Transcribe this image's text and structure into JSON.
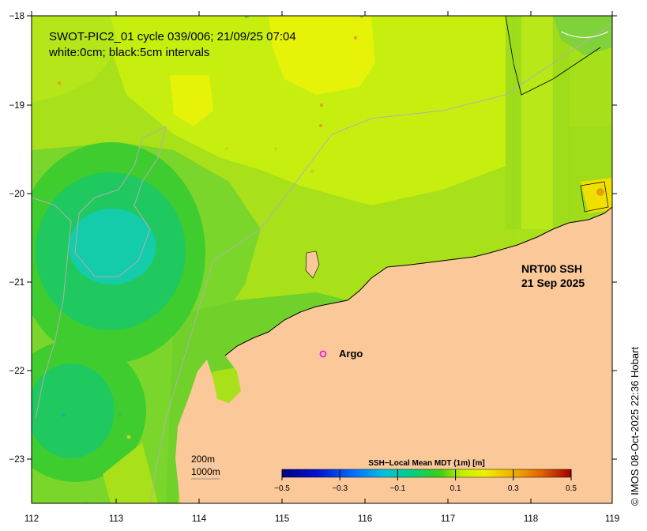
{
  "map": {
    "title_line1": "SWOT-PIC2_01 cycle 039/006; 21/09/25 07:04",
    "title_line2": "white:0cm; black:5cm intervals",
    "product_line1": "NRT00 SSH",
    "product_line2": "21 Sep 2025",
    "argo_label": "Argo",
    "depth_label_1": "200m",
    "depth_label_2": "1000m",
    "copyright": "© IMOS 08-Oct-2025 22:36 Hobart",
    "x_ticks": [
      "112",
      "113",
      "114",
      "115",
      "116",
      "117",
      "118",
      "119"
    ],
    "y_ticks": [
      "−18",
      "−19",
      "−20",
      "−21",
      "−22",
      "−23"
    ]
  },
  "colorbar": {
    "title": "SSH−Local Mean MDT (1m) [m]",
    "ticks": [
      "−0.5",
      "−0.3",
      "−0.1",
      "0.1",
      "0.3",
      "0.5"
    ],
    "min": -0.5,
    "max": 0.5
  },
  "colors": {
    "land": "#fbc89a",
    "argo_marker": "#e020e0",
    "ssh_base": "#7fd61e"
  }
}
